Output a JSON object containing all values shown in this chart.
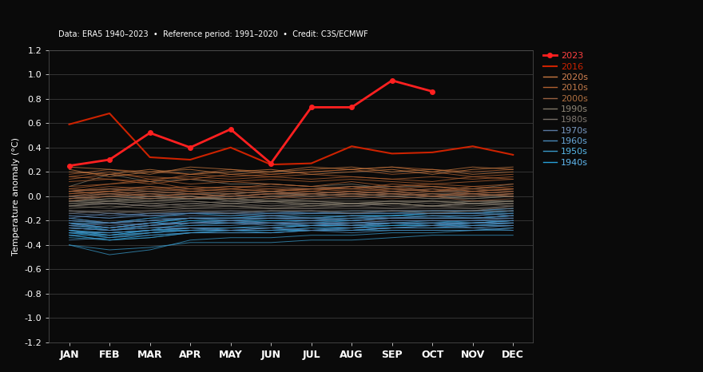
{
  "background_color": "#0a0a0a",
  "title_text": "Data: ERA5 1940–2023  •  Reference period: 1991–2020  •  Credit: C3S/ECMWF",
  "ylabel": "Temperature anomaly (°C)",
  "months": [
    "JAN",
    "FEB",
    "MAR",
    "APR",
    "MAY",
    "JUN",
    "JUL",
    "AUG",
    "SEP",
    "OCT",
    "NOV",
    "DEC"
  ],
  "ylim": [
    -1.2,
    1.2
  ],
  "yticks": [
    -1.2,
    -1.0,
    -0.8,
    -0.6,
    -0.4,
    -0.2,
    0.0,
    0.2,
    0.4,
    0.6,
    0.8,
    1.0,
    1.2
  ],
  "line_2023": [
    0.25,
    0.3,
    0.52,
    0.4,
    0.55,
    0.27,
    0.73,
    0.73,
    0.95,
    0.86,
    null,
    null
  ],
  "line_2016": [
    0.59,
    0.68,
    0.32,
    0.3,
    0.4,
    0.26,
    0.27,
    0.41,
    0.35,
    0.36,
    0.41,
    0.34
  ],
  "decade_colors": {
    "2020s": "#c87941",
    "2010s": "#b87040",
    "2000s": "#a06838",
    "1990s": "#887060",
    "1980s": "#786858",
    "1970s": "#6878a0",
    "1960s": "#5888b8",
    "1950s": "#4898c8",
    "1940s": "#38a0d8"
  },
  "decade_label_colors": {
    "2020s": "#d08050",
    "2010s": "#c07848",
    "2000s": "#b07040",
    "1990s": "#908878",
    "1980s": "#807870",
    "1970s": "#7898c0",
    "1960s": "#68a8d8",
    "1950s": "#58b8e8",
    "1940s": "#60b8f0"
  },
  "years_data": {
    "2020": [
      0.2,
      0.18,
      0.22,
      0.18,
      0.2,
      0.22,
      0.18,
      0.2,
      0.22,
      0.18,
      0.22,
      0.24
    ],
    "2021": [
      0.22,
      0.16,
      0.2,
      0.22,
      0.18,
      0.2,
      0.22,
      0.24,
      0.2,
      0.22,
      0.18,
      0.2
    ],
    "2022": [
      0.24,
      0.22,
      0.18,
      0.24,
      0.22,
      0.2,
      0.24,
      0.22,
      0.24,
      0.2,
      0.24,
      0.22
    ],
    "2019": [
      0.18,
      0.22,
      0.2,
      0.18,
      0.22,
      0.18,
      0.2,
      0.22,
      0.18,
      0.2,
      0.16,
      0.18
    ],
    "2018": [
      0.14,
      0.18,
      0.16,
      0.14,
      0.18,
      0.16,
      0.18,
      0.16,
      0.14,
      0.16,
      0.14,
      0.16
    ],
    "2017": [
      0.16,
      0.2,
      0.14,
      0.16,
      0.14,
      0.16,
      0.14,
      0.16,
      0.14,
      0.12,
      0.16,
      0.14
    ],
    "2015": [
      0.16,
      0.14,
      0.12,
      0.18,
      0.16,
      0.18,
      0.2,
      0.22,
      0.24,
      0.22,
      0.2,
      0.22
    ],
    "2014": [
      0.12,
      0.14,
      0.1,
      0.14,
      0.12,
      0.14,
      0.12,
      0.14,
      0.12,
      0.1,
      0.12,
      0.14
    ],
    "2013": [
      0.08,
      0.1,
      0.14,
      0.1,
      0.12,
      0.1,
      0.08,
      0.12,
      0.08,
      0.1,
      0.08,
      0.1
    ],
    "2012": [
      0.04,
      0.08,
      0.06,
      0.08,
      0.06,
      0.1,
      0.08,
      0.06,
      0.1,
      0.08,
      0.06,
      0.08
    ],
    "2011": [
      0.02,
      0.04,
      0.08,
      0.04,
      0.06,
      0.04,
      0.06,
      0.04,
      0.06,
      0.04,
      0.08,
      0.06
    ],
    "2010": [
      0.06,
      0.1,
      0.12,
      0.06,
      0.08,
      0.06,
      0.04,
      0.08,
      0.06,
      0.08,
      0.04,
      0.06
    ],
    "2009": [
      0.02,
      0.04,
      0.02,
      0.04,
      0.02,
      0.04,
      0.02,
      0.04,
      0.02,
      0.04,
      0.02,
      0.04
    ],
    "2008": [
      -0.02,
      0.0,
      0.02,
      -0.02,
      0.02,
      -0.02,
      0.02,
      0.0,
      0.02,
      0.0,
      0.02,
      0.0
    ],
    "2007": [
      0.0,
      0.04,
      0.0,
      0.02,
      0.0,
      0.02,
      0.04,
      0.02,
      0.04,
      0.0,
      0.04,
      0.02
    ],
    "2006": [
      0.04,
      0.02,
      0.04,
      0.02,
      0.04,
      0.02,
      0.04,
      0.02,
      0.04,
      0.02,
      0.0,
      0.02
    ],
    "2005": [
      0.06,
      0.04,
      0.06,
      0.04,
      0.06,
      0.04,
      0.06,
      0.06,
      0.04,
      0.06,
      0.04,
      0.06
    ],
    "2004": [
      0.0,
      0.02,
      0.0,
      0.02,
      0.0,
      0.02,
      0.0,
      0.02,
      0.0,
      0.02,
      0.0,
      0.02
    ],
    "2003": [
      0.04,
      0.06,
      0.04,
      0.06,
      0.04,
      0.06,
      0.06,
      0.08,
      0.04,
      0.06,
      0.02,
      0.04
    ],
    "2002": [
      0.04,
      0.06,
      0.08,
      0.06,
      0.08,
      0.08,
      0.06,
      0.06,
      0.08,
      0.04,
      0.06,
      0.04
    ],
    "2001": [
      -0.02,
      0.02,
      0.0,
      0.02,
      0.0,
      0.02,
      0.02,
      0.04,
      0.02,
      0.0,
      0.02,
      0.0
    ],
    "2000": [
      -0.04,
      0.0,
      -0.02,
      0.0,
      -0.02,
      0.0,
      -0.02,
      0.0,
      -0.02,
      0.0,
      -0.04,
      -0.02
    ],
    "1999": [
      -0.08,
      -0.04,
      -0.06,
      -0.04,
      -0.06,
      -0.04,
      -0.04,
      -0.06,
      -0.04,
      -0.04,
      -0.06,
      -0.04
    ],
    "1998": [
      0.08,
      0.18,
      0.12,
      0.14,
      0.1,
      0.1,
      0.08,
      0.1,
      0.06,
      0.04,
      0.04,
      0.06
    ],
    "1997": [
      -0.04,
      -0.02,
      0.0,
      -0.02,
      0.02,
      0.04,
      0.06,
      0.08,
      0.08,
      0.08,
      0.06,
      0.1
    ],
    "1996": [
      -0.1,
      -0.08,
      -0.1,
      -0.08,
      -0.08,
      -0.1,
      -0.08,
      -0.06,
      -0.06,
      -0.08,
      -0.08,
      -0.06
    ],
    "1995": [
      -0.04,
      -0.04,
      -0.02,
      -0.02,
      -0.02,
      0.0,
      0.0,
      0.02,
      0.0,
      0.02,
      0.02,
      0.0
    ],
    "1994": [
      -0.06,
      -0.04,
      -0.04,
      -0.02,
      -0.02,
      0.0,
      0.02,
      0.0,
      0.02,
      0.0,
      -0.02,
      0.0
    ],
    "1993": [
      -0.02,
      0.0,
      -0.02,
      0.0,
      -0.04,
      -0.02,
      -0.04,
      -0.04,
      -0.04,
      -0.04,
      -0.04,
      -0.04
    ],
    "1992": [
      -0.02,
      0.0,
      0.02,
      0.0,
      -0.02,
      -0.04,
      -0.06,
      -0.06,
      -0.06,
      -0.08,
      -0.04,
      -0.04
    ],
    "1991": [
      -0.04,
      -0.02,
      -0.04,
      -0.02,
      -0.02,
      -0.04,
      -0.08,
      -0.06,
      -0.06,
      -0.04,
      -0.06,
      -0.04
    ],
    "1990": [
      0.04,
      0.06,
      0.04,
      0.02,
      0.02,
      0.04,
      0.0,
      0.02,
      0.0,
      -0.02,
      0.0,
      0.0
    ],
    "1989": [
      -0.04,
      -0.06,
      -0.04,
      -0.04,
      -0.06,
      -0.04,
      -0.04,
      -0.06,
      -0.04,
      -0.06,
      -0.04,
      -0.04
    ],
    "1988": [
      0.0,
      -0.04,
      0.0,
      -0.02,
      0.0,
      0.02,
      0.02,
      0.04,
      0.02,
      0.0,
      0.0,
      0.02
    ],
    "1987": [
      -0.06,
      -0.06,
      -0.08,
      -0.06,
      -0.04,
      -0.04,
      -0.02,
      -0.02,
      0.0,
      -0.02,
      -0.02,
      0.0
    ],
    "1986": [
      -0.08,
      -0.1,
      -0.06,
      -0.08,
      -0.06,
      -0.08,
      -0.08,
      -0.08,
      -0.06,
      -0.08,
      -0.06,
      -0.06
    ],
    "1985": [
      -0.12,
      -0.12,
      -0.12,
      -0.1,
      -0.1,
      -0.1,
      -0.1,
      -0.1,
      -0.1,
      -0.1,
      -0.1,
      -0.1
    ],
    "1984": [
      -0.12,
      -0.14,
      -0.12,
      -0.12,
      -0.12,
      -0.12,
      -0.12,
      -0.12,
      -0.12,
      -0.14,
      -0.12,
      -0.12
    ],
    "1983": [
      0.0,
      0.02,
      -0.02,
      0.0,
      -0.04,
      -0.06,
      -0.06,
      -0.06,
      -0.08,
      -0.08,
      -0.06,
      -0.06
    ],
    "1982": [
      -0.14,
      -0.12,
      -0.14,
      -0.12,
      -0.14,
      -0.12,
      -0.12,
      -0.14,
      -0.12,
      -0.12,
      -0.12,
      -0.08
    ],
    "1981": [
      -0.08,
      -0.06,
      -0.08,
      -0.06,
      -0.08,
      -0.08,
      -0.06,
      -0.08,
      -0.06,
      -0.08,
      -0.06,
      -0.08
    ],
    "1980": [
      -0.08,
      -0.06,
      -0.08,
      -0.1,
      -0.08,
      -0.1,
      -0.1,
      -0.08,
      -0.1,
      -0.08,
      -0.1,
      -0.08
    ],
    "1979": [
      -0.18,
      -0.14,
      -0.16,
      -0.14,
      -0.14,
      -0.14,
      -0.14,
      -0.14,
      -0.14,
      -0.14,
      -0.14,
      -0.12
    ],
    "1978": [
      -0.16,
      -0.18,
      -0.16,
      -0.16,
      -0.16,
      -0.16,
      -0.18,
      -0.16,
      -0.18,
      -0.16,
      -0.16,
      -0.14
    ],
    "1977": [
      -0.12,
      -0.14,
      -0.16,
      -0.14,
      -0.12,
      -0.14,
      -0.12,
      -0.14,
      -0.12,
      -0.12,
      -0.12,
      -0.1
    ],
    "1976": [
      -0.24,
      -0.22,
      -0.24,
      -0.22,
      -0.22,
      -0.22,
      -0.22,
      -0.22,
      -0.2,
      -0.2,
      -0.2,
      -0.2
    ],
    "1975": [
      -0.2,
      -0.22,
      -0.2,
      -0.18,
      -0.2,
      -0.18,
      -0.18,
      -0.2,
      -0.18,
      -0.18,
      -0.18,
      -0.16
    ],
    "1974": [
      -0.24,
      -0.26,
      -0.24,
      -0.22,
      -0.22,
      -0.24,
      -0.22,
      -0.24,
      -0.22,
      -0.22,
      -0.22,
      -0.22
    ],
    "1973": [
      -0.14,
      -0.16,
      -0.14,
      -0.14,
      -0.14,
      -0.16,
      -0.14,
      -0.14,
      -0.14,
      -0.14,
      -0.14,
      -0.16
    ],
    "1972": [
      -0.22,
      -0.24,
      -0.22,
      -0.22,
      -0.2,
      -0.22,
      -0.2,
      -0.22,
      -0.2,
      -0.2,
      -0.2,
      -0.18
    ],
    "1971": [
      -0.26,
      -0.28,
      -0.26,
      -0.26,
      -0.28,
      -0.26,
      -0.28,
      -0.26,
      -0.26,
      -0.24,
      -0.26,
      -0.24
    ],
    "1970": [
      -0.18,
      -0.22,
      -0.2,
      -0.18,
      -0.18,
      -0.18,
      -0.2,
      -0.18,
      -0.18,
      -0.18,
      -0.18,
      -0.18
    ],
    "1969": [
      -0.16,
      -0.18,
      -0.14,
      -0.14,
      -0.14,
      -0.12,
      -0.14,
      -0.12,
      -0.12,
      -0.12,
      -0.12,
      -0.12
    ],
    "1968": [
      -0.3,
      -0.3,
      -0.28,
      -0.26,
      -0.28,
      -0.26,
      -0.28,
      -0.28,
      -0.26,
      -0.26,
      -0.24,
      -0.24
    ],
    "1967": [
      -0.26,
      -0.28,
      -0.24,
      -0.22,
      -0.22,
      -0.22,
      -0.22,
      -0.24,
      -0.22,
      -0.22,
      -0.22,
      -0.2
    ],
    "1966": [
      -0.28,
      -0.3,
      -0.28,
      -0.26,
      -0.26,
      -0.26,
      -0.24,
      -0.26,
      -0.22,
      -0.24,
      -0.22,
      -0.22
    ],
    "1965": [
      -0.32,
      -0.32,
      -0.3,
      -0.28,
      -0.28,
      -0.28,
      -0.26,
      -0.28,
      -0.26,
      -0.26,
      -0.24,
      -0.24
    ],
    "1964": [
      -0.36,
      -0.34,
      -0.32,
      -0.3,
      -0.3,
      -0.3,
      -0.28,
      -0.3,
      -0.28,
      -0.28,
      -0.28,
      -0.26
    ],
    "1963": [
      -0.24,
      -0.26,
      -0.22,
      -0.22,
      -0.22,
      -0.22,
      -0.24,
      -0.22,
      -0.22,
      -0.22,
      -0.26,
      -0.28
    ],
    "1962": [
      -0.26,
      -0.28,
      -0.26,
      -0.24,
      -0.24,
      -0.22,
      -0.24,
      -0.22,
      -0.22,
      -0.22,
      -0.24,
      -0.22
    ],
    "1961": [
      -0.2,
      -0.22,
      -0.18,
      -0.18,
      -0.18,
      -0.18,
      -0.18,
      -0.2,
      -0.18,
      -0.18,
      -0.18,
      -0.18
    ],
    "1960": [
      -0.22,
      -0.26,
      -0.22,
      -0.22,
      -0.2,
      -0.22,
      -0.22,
      -0.22,
      -0.22,
      -0.22,
      -0.22,
      -0.22
    ],
    "1959": [
      -0.26,
      -0.28,
      -0.26,
      -0.24,
      -0.22,
      -0.22,
      -0.22,
      -0.22,
      -0.22,
      -0.2,
      -0.22,
      -0.2
    ],
    "1958": [
      -0.3,
      -0.3,
      -0.28,
      -0.26,
      -0.26,
      -0.26,
      -0.24,
      -0.24,
      -0.24,
      -0.24,
      -0.22,
      -0.22
    ],
    "1957": [
      -0.22,
      -0.22,
      -0.2,
      -0.18,
      -0.18,
      -0.16,
      -0.16,
      -0.16,
      -0.16,
      -0.14,
      -0.14,
      -0.14
    ],
    "1956": [
      -0.4,
      -0.44,
      -0.42,
      -0.38,
      -0.38,
      -0.38,
      -0.36,
      -0.36,
      -0.34,
      -0.32,
      -0.32,
      -0.32
    ],
    "1955": [
      -0.32,
      -0.36,
      -0.34,
      -0.3,
      -0.3,
      -0.3,
      -0.28,
      -0.28,
      -0.28,
      -0.28,
      -0.28,
      -0.26
    ],
    "1954": [
      -0.34,
      -0.36,
      -0.34,
      -0.3,
      -0.28,
      -0.28,
      -0.28,
      -0.28,
      -0.26,
      -0.26,
      -0.26,
      -0.24
    ],
    "1953": [
      -0.2,
      -0.22,
      -0.2,
      -0.18,
      -0.18,
      -0.16,
      -0.18,
      -0.18,
      -0.16,
      -0.16,
      -0.18,
      -0.16
    ],
    "1952": [
      -0.28,
      -0.32,
      -0.3,
      -0.26,
      -0.26,
      -0.24,
      -0.24,
      -0.24,
      -0.22,
      -0.22,
      -0.22,
      -0.2
    ],
    "1951": [
      -0.28,
      -0.34,
      -0.3,
      -0.28,
      -0.26,
      -0.26,
      -0.24,
      -0.24,
      -0.22,
      -0.22,
      -0.22,
      -0.22
    ],
    "1950": [
      -0.4,
      -0.48,
      -0.44,
      -0.36,
      -0.34,
      -0.34,
      -0.32,
      -0.32,
      -0.3,
      -0.3,
      -0.28,
      -0.28
    ],
    "1949": [
      -0.3,
      -0.32,
      -0.28,
      -0.28,
      -0.28,
      -0.28,
      -0.28,
      -0.26,
      -0.24,
      -0.24,
      -0.22,
      -0.22
    ],
    "1948": [
      -0.32,
      -0.36,
      -0.32,
      -0.3,
      -0.28,
      -0.3,
      -0.28,
      -0.28,
      -0.26,
      -0.24,
      -0.24,
      -0.22
    ],
    "1947": [
      -0.3,
      -0.34,
      -0.3,
      -0.28,
      -0.28,
      -0.28,
      -0.26,
      -0.26,
      -0.24,
      -0.22,
      -0.22,
      -0.2
    ],
    "1946": [
      -0.28,
      -0.3,
      -0.28,
      -0.26,
      -0.26,
      -0.26,
      -0.24,
      -0.24,
      -0.22,
      -0.22,
      -0.2,
      -0.2
    ],
    "1945": [
      -0.22,
      -0.28,
      -0.24,
      -0.2,
      -0.22,
      -0.2,
      -0.2,
      -0.2,
      -0.18,
      -0.18,
      -0.18,
      -0.16
    ],
    "1944": [
      -0.18,
      -0.22,
      -0.18,
      -0.14,
      -0.16,
      -0.14,
      -0.14,
      -0.14,
      -0.14,
      -0.12,
      -0.12,
      -0.1
    ],
    "1943": [
      -0.22,
      -0.26,
      -0.22,
      -0.18,
      -0.18,
      -0.18,
      -0.18,
      -0.16,
      -0.16,
      -0.14,
      -0.14,
      -0.12
    ],
    "1942": [
      -0.24,
      -0.28,
      -0.24,
      -0.2,
      -0.2,
      -0.2,
      -0.2,
      -0.18,
      -0.18,
      -0.16,
      -0.16,
      -0.14
    ],
    "1941": [
      -0.22,
      -0.26,
      -0.22,
      -0.18,
      -0.2,
      -0.18,
      -0.18,
      -0.16,
      -0.16,
      -0.14,
      -0.14,
      -0.12
    ],
    "1940": [
      -0.28,
      -0.32,
      -0.28,
      -0.22,
      -0.22,
      -0.22,
      -0.22,
      -0.2,
      -0.18,
      -0.18,
      -0.18,
      -0.16
    ]
  }
}
